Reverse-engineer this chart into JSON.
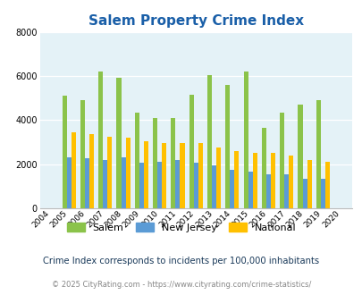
{
  "title": "Salem Property Crime Index",
  "years": [
    2004,
    2005,
    2006,
    2007,
    2008,
    2009,
    2010,
    2011,
    2012,
    2013,
    2014,
    2015,
    2016,
    2017,
    2018,
    2019,
    2020
  ],
  "salem": [
    null,
    5100,
    4900,
    6200,
    5950,
    4350,
    4100,
    4100,
    5150,
    6050,
    5600,
    6200,
    3650,
    4350,
    4700,
    4900,
    null
  ],
  "new_jersey": [
    null,
    2300,
    2250,
    2200,
    2300,
    2050,
    2100,
    2200,
    2050,
    1950,
    1750,
    1650,
    1550,
    1550,
    1350,
    1350,
    null
  ],
  "national": [
    null,
    3450,
    3350,
    3250,
    3200,
    3050,
    2950,
    2950,
    2950,
    2750,
    2600,
    2500,
    2500,
    2400,
    2200,
    2100,
    null
  ],
  "salem_color": "#8bc34a",
  "nj_color": "#5b9bd5",
  "national_color": "#ffc000",
  "bg_color": "#e4f2f7",
  "ylim": [
    0,
    8000
  ],
  "yticks": [
    0,
    2000,
    4000,
    6000,
    8000
  ],
  "subtitle": "Crime Index corresponds to incidents per 100,000 inhabitants",
  "footer": "© 2025 CityRating.com - https://www.cityrating.com/crime-statistics/",
  "title_color": "#1a5fa8",
  "subtitle_color": "#1a3a5a",
  "footer_color": "#888888",
  "footer_url_color": "#4488cc",
  "legend_labels": [
    "Salem",
    "New Jersey",
    "National"
  ]
}
